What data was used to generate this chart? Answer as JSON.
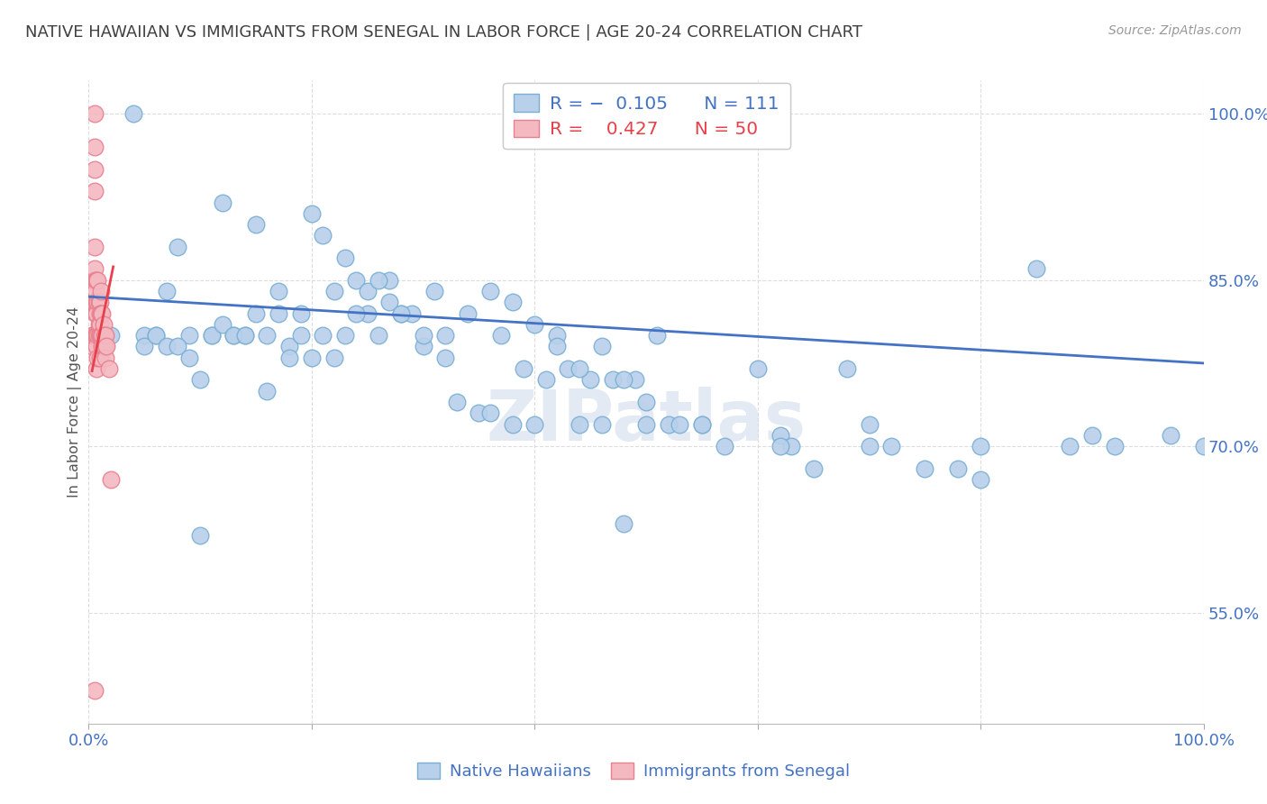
{
  "title": "NATIVE HAWAIIAN VS IMMIGRANTS FROM SENEGAL IN LABOR FORCE | AGE 20-24 CORRELATION CHART",
  "source": "Source: ZipAtlas.com",
  "ylabel": "In Labor Force | Age 20-24",
  "xlim": [
    0.0,
    1.0
  ],
  "ylim": [
    0.45,
    1.03
  ],
  "xtick_vals": [
    0.0,
    0.2,
    0.4,
    0.6,
    0.8,
    1.0
  ],
  "xtick_labels": [
    "0.0%",
    "",
    "",
    "",
    "",
    "100.0%"
  ],
  "ytick_vals": [
    0.55,
    0.7,
    0.85,
    1.0
  ],
  "ytick_labels": [
    "55.0%",
    "70.0%",
    "85.0%",
    "100.0%"
  ],
  "blue_R": -0.105,
  "blue_N": 111,
  "pink_R": 0.427,
  "pink_N": 50,
  "blue_color": "#b8d0ea",
  "blue_edge": "#7aafd4",
  "pink_color": "#f4b8c1",
  "pink_edge": "#e8808f",
  "trend_blue": "#4472c4",
  "trend_pink": "#e8404a",
  "axis_color": "#4472c4",
  "watermark": "ZIPatlas",
  "legend_R_blue": "R = -0.105",
  "legend_N_blue": "N = 111",
  "legend_R_pink": "R =  0.427",
  "legend_N_pink": "N = 50",
  "blue_trend_x": [
    0.0,
    1.0
  ],
  "blue_trend_y": [
    0.835,
    0.775
  ],
  "pink_trend_x": [
    0.003,
    0.022
  ],
  "pink_trend_y": [
    0.768,
    0.862
  ],
  "blue_x": [
    0.02,
    0.04,
    0.05,
    0.06,
    0.07,
    0.08,
    0.09,
    0.1,
    0.11,
    0.12,
    0.13,
    0.14,
    0.15,
    0.16,
    0.17,
    0.18,
    0.19,
    0.2,
    0.21,
    0.22,
    0.23,
    0.24,
    0.25,
    0.26,
    0.27,
    0.28,
    0.29,
    0.3,
    0.31,
    0.32,
    0.33,
    0.35,
    0.36,
    0.37,
    0.38,
    0.39,
    0.4,
    0.41,
    0.42,
    0.43,
    0.44,
    0.45,
    0.46,
    0.47,
    0.48,
    0.49,
    0.5,
    0.51,
    0.52,
    0.53,
    0.55,
    0.57,
    0.6,
    0.62,
    0.63,
    0.65,
    0.68,
    0.7,
    0.72,
    0.75,
    0.78,
    0.8,
    0.85,
    0.88,
    0.92,
    0.97,
    1.0,
    0.05,
    0.06,
    0.07,
    0.08,
    0.09,
    0.1,
    0.11,
    0.12,
    0.13,
    0.14,
    0.15,
    0.16,
    0.17,
    0.18,
    0.19,
    0.2,
    0.21,
    0.22,
    0.23,
    0.24,
    0.25,
    0.26,
    0.27,
    0.28,
    0.3,
    0.32,
    0.34,
    0.36,
    0.38,
    0.4,
    0.42,
    0.44,
    0.46,
    0.48,
    0.5,
    0.55,
    0.62,
    0.7,
    0.8,
    0.9
  ],
  "blue_y": [
    0.8,
    1.0,
    0.8,
    0.8,
    0.84,
    0.88,
    0.8,
    0.76,
    0.8,
    0.92,
    0.8,
    0.8,
    0.9,
    0.75,
    0.84,
    0.79,
    0.82,
    0.91,
    0.89,
    0.84,
    0.87,
    0.85,
    0.82,
    0.8,
    0.85,
    0.82,
    0.82,
    0.79,
    0.84,
    0.8,
    0.74,
    0.73,
    0.73,
    0.8,
    0.72,
    0.77,
    0.72,
    0.76,
    0.8,
    0.77,
    0.72,
    0.76,
    0.72,
    0.76,
    0.63,
    0.76,
    0.72,
    0.8,
    0.72,
    0.72,
    0.72,
    0.7,
    0.77,
    0.71,
    0.7,
    0.68,
    0.77,
    0.7,
    0.7,
    0.68,
    0.68,
    0.67,
    0.86,
    0.7,
    0.7,
    0.71,
    0.7,
    0.79,
    0.8,
    0.79,
    0.79,
    0.78,
    0.62,
    0.8,
    0.81,
    0.8,
    0.8,
    0.82,
    0.8,
    0.82,
    0.78,
    0.8,
    0.78,
    0.8,
    0.78,
    0.8,
    0.82,
    0.84,
    0.85,
    0.83,
    0.82,
    0.8,
    0.78,
    0.82,
    0.84,
    0.83,
    0.81,
    0.79,
    0.77,
    0.79,
    0.76,
    0.74,
    0.72,
    0.7,
    0.72,
    0.7,
    0.71
  ],
  "pink_x": [
    0.003,
    0.003,
    0.004,
    0.004,
    0.004,
    0.005,
    0.005,
    0.005,
    0.005,
    0.005,
    0.005,
    0.005,
    0.006,
    0.006,
    0.006,
    0.006,
    0.007,
    0.007,
    0.007,
    0.007,
    0.007,
    0.007,
    0.008,
    0.008,
    0.008,
    0.008,
    0.009,
    0.009,
    0.009,
    0.01,
    0.01,
    0.01,
    0.01,
    0.01,
    0.011,
    0.011,
    0.011,
    0.012,
    0.012,
    0.012,
    0.013,
    0.013,
    0.014,
    0.014,
    0.015,
    0.015,
    0.016,
    0.018,
    0.02,
    0.005
  ],
  "pink_y": [
    0.8,
    0.79,
    0.85,
    0.83,
    0.8,
    1.0,
    0.97,
    0.95,
    0.93,
    0.88,
    0.86,
    0.83,
    0.85,
    0.84,
    0.82,
    0.8,
    0.85,
    0.83,
    0.82,
    0.8,
    0.79,
    0.77,
    0.85,
    0.83,
    0.8,
    0.78,
    0.83,
    0.81,
    0.8,
    0.83,
    0.82,
    0.81,
    0.8,
    0.78,
    0.84,
    0.82,
    0.8,
    0.82,
    0.8,
    0.79,
    0.81,
    0.79,
    0.8,
    0.79,
    0.8,
    0.78,
    0.79,
    0.77,
    0.67,
    0.48
  ]
}
